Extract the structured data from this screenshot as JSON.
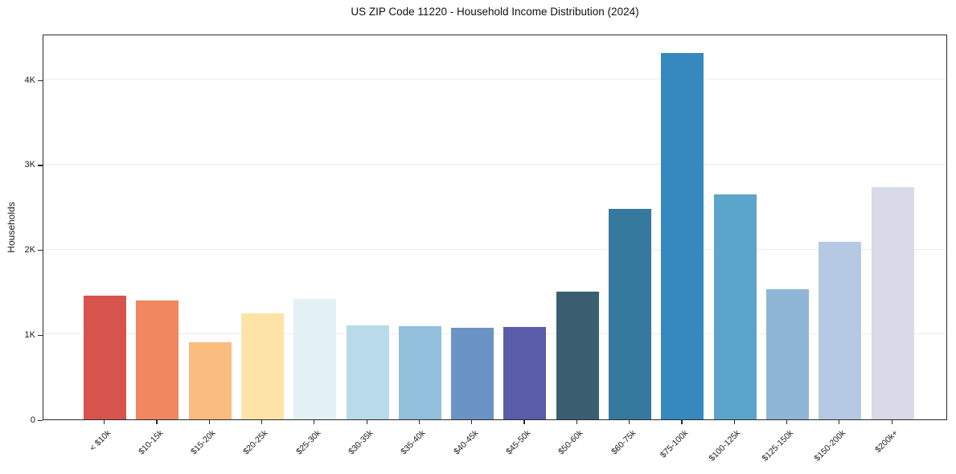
{
  "chart_data": {
    "type": "bar",
    "title": "US ZIP Code 11220 - Household Income Distribution (2024)",
    "ylabel": "Households",
    "xlabel": "",
    "categories": [
      "< $10k",
      "$10-15k",
      "$15-20k",
      "$20-25k",
      "$25-30k",
      "$30-35k",
      "$35-40k",
      "$40-45k",
      "$45-50k",
      "$50-60k",
      "$60-75k",
      "$75-100k",
      "$100-125k",
      "$125-150k",
      "$150-200k",
      "$200k+"
    ],
    "values": [
      1460,
      1400,
      910,
      1250,
      1420,
      1110,
      1100,
      1080,
      1090,
      1500,
      2480,
      4310,
      2650,
      1530,
      2090,
      2730
    ],
    "bar_colors": [
      "#d6534e",
      "#f0875f",
      "#fbbc80",
      "#fde4a6",
      "#e4f1f4",
      "#b9dbe9",
      "#92bfdb",
      "#6b93c4",
      "#595da9",
      "#3a5f70",
      "#36799e",
      "#3589bf",
      "#5ba4ca",
      "#8fb6d6",
      "#b6c9e2",
      "#d8dae8"
    ],
    "ylim": [
      0,
      4540
    ],
    "yticks": {
      "values": [
        0,
        1000,
        2000,
        3000,
        4000
      ],
      "labels": [
        "0",
        "1K",
        "2K",
        "3K",
        "4K"
      ]
    },
    "grid": "horizontal",
    "legend": "none",
    "colors": {
      "grid": "#ececec",
      "spine": "#2a2a2a",
      "text": "#1a1a1a",
      "background": "#ffffff"
    }
  }
}
